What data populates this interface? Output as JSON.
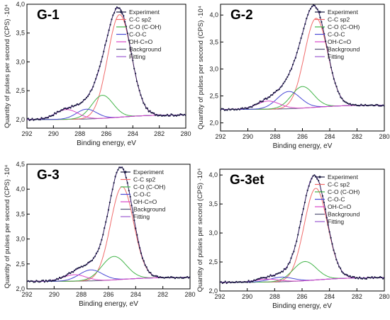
{
  "chart_data": [
    {
      "type": "line",
      "title": "G-1",
      "xlabel": "Binding energy, eV",
      "ylabel": "Quantity of pulses per second  (CPS) ·10⁴",
      "xlim": [
        292,
        280
      ],
      "ylim": [
        1.85,
        4.0
      ],
      "xticks": [
        292,
        290,
        288,
        286,
        284,
        282,
        280
      ],
      "yticks": [
        2.0,
        2.5,
        3.0,
        3.5,
        4.0
      ],
      "ytick_labels": [
        "2,0",
        "2,5",
        "3,0",
        "3,5",
        "4,0"
      ],
      "baseline": 2.0,
      "components": [
        {
          "name": "C-C sp2",
          "center": 285.0,
          "height": 1.78,
          "fwhm": 2.1
        },
        {
          "name": "C-O (C-OH)",
          "center": 286.3,
          "height": 0.4,
          "fwhm": 1.9
        },
        {
          "name": "C-O-C",
          "center": 287.5,
          "height": 0.17,
          "fwhm": 1.8
        },
        {
          "name": "OH-C=O",
          "center": 289.0,
          "height": 0.17,
          "fwhm": 2.0
        }
      ],
      "legend": [
        "Experiment",
        "C-C sp2",
        "C-O (C-OH)",
        "C-O-C",
        "OH-C=O",
        "Background",
        "Fitting"
      ]
    },
    {
      "type": "line",
      "title": "G-2",
      "xlabel": "Binding energy, eV",
      "ylabel": "Quantity of pulses per second  (CPS) ·10⁴",
      "xlim": [
        292,
        280
      ],
      "ylim": [
        1.85,
        4.2
      ],
      "xticks": [
        292,
        290,
        288,
        286,
        284,
        282,
        280
      ],
      "yticks": [
        2.0,
        2.5,
        3.0,
        3.5,
        4.0
      ],
      "ytick_labels": [
        "2,0",
        "2,5",
        "3,0",
        "3,5",
        "4,0"
      ],
      "baseline": 2.25,
      "components": [
        {
          "name": "C-C sp2",
          "center": 285.0,
          "height": 1.65,
          "fwhm": 2.0
        },
        {
          "name": "C-O (C-OH)",
          "center": 286.0,
          "height": 0.4,
          "fwhm": 1.9
        },
        {
          "name": "C-O-C",
          "center": 287.0,
          "height": 0.32,
          "fwhm": 2.0
        },
        {
          "name": "OH-C=O",
          "center": 288.5,
          "height": 0.15,
          "fwhm": 2.0
        }
      ],
      "legend": [
        "Experiment",
        "C-C sp2",
        "C-O (C-OH)",
        "C-O-C",
        "OH-C=O",
        "Background",
        "Fitting"
      ]
    },
    {
      "type": "line",
      "title": "G-3",
      "xlabel": "Binding energy, eV",
      "ylabel": "Quantity of pulses per second  (CPS) ·10⁴",
      "xlim": [
        292,
        280
      ],
      "ylim": [
        2.0,
        4.5
      ],
      "xticks": [
        292,
        290,
        288,
        286,
        284,
        282,
        280
      ],
      "yticks": [
        2.0,
        2.5,
        3.0,
        3.5,
        4.0,
        4.5
      ],
      "ytick_labels": [
        "2,0",
        "2,5",
        "3,0",
        "3,5",
        "4,0",
        "4,5"
      ],
      "baseline": 2.15,
      "components": [
        {
          "name": "C-C sp2",
          "center": 285.0,
          "height": 1.86,
          "fwhm": 2.0
        },
        {
          "name": "C-O (C-OH)",
          "center": 285.6,
          "height": 0.47,
          "fwhm": 2.1
        },
        {
          "name": "C-O-C",
          "center": 287.3,
          "height": 0.22,
          "fwhm": 2.0
        },
        {
          "name": "OH-C=O",
          "center": 288.5,
          "height": 0.13,
          "fwhm": 2.0
        }
      ],
      "legend": [
        "Experiment",
        "C-C sp2",
        "C-O (C-OH)",
        "C-O-C",
        "OH-C=O",
        "Background",
        "Fitting"
      ]
    },
    {
      "type": "line",
      "title": "G-3et",
      "xlabel": "Binding energy, eV",
      "ylabel": "Quantity of pulses per second  (CPS) ·10⁴",
      "xlim": [
        292,
        280
      ],
      "ylim": [
        2.0,
        4.1
      ],
      "xticks": [
        292,
        290,
        288,
        286,
        284,
        282,
        280
      ],
      "yticks": [
        2.0,
        2.5,
        3.0,
        3.5,
        4.0
      ],
      "ytick_labels": [
        "2,0",
        "2,5",
        "3,0",
        "3,5",
        "4,0"
      ],
      "baseline": 2.15,
      "components": [
        {
          "name": "C-C sp2",
          "center": 285.0,
          "height": 1.58,
          "fwhm": 2.0
        },
        {
          "name": "C-O (C-OH)",
          "center": 285.8,
          "height": 0.33,
          "fwhm": 2.0
        },
        {
          "name": "C-O-C",
          "center": 287.5,
          "height": 0.08,
          "fwhm": 2.0
        },
        {
          "name": "OH-C=O",
          "center": 288.5,
          "height": 0.05,
          "fwhm": 2.0
        }
      ],
      "legend": [
        "Experiment",
        "C-C sp2",
        "C-O (C-OH)",
        "C-O-C",
        "OH-C=O",
        "Background",
        "Fitting"
      ]
    }
  ],
  "series_colors": {
    "Experiment": "#1a1a40",
    "C-C sp2": "#f06b6b",
    "C-O (C-OH)": "#43b54a",
    "C-O-C": "#4a4ad6",
    "OH-C=O": "#d946c8",
    "Background": "#555577",
    "Fitting": "#9b59d0"
  }
}
